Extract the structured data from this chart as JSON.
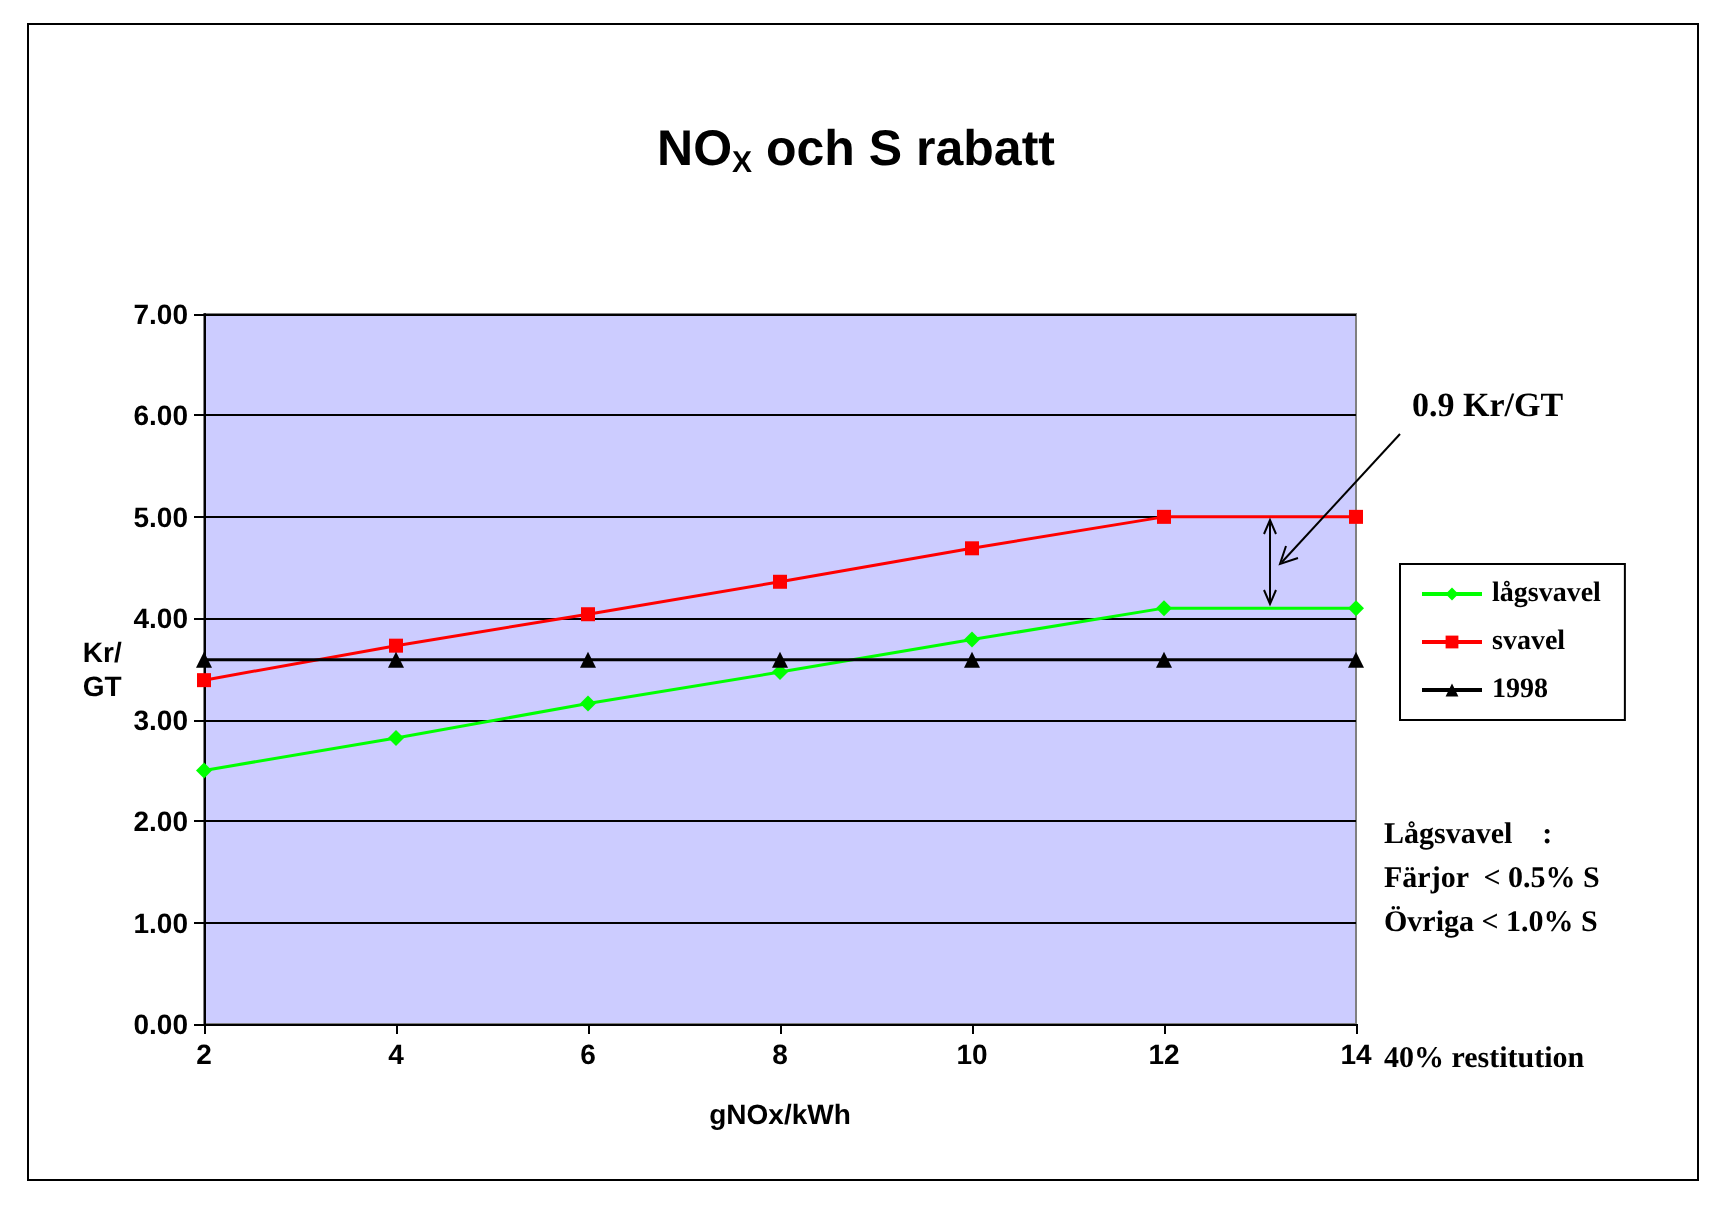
{
  "chart_data": {
    "type": "line",
    "title": "NO$_{X}$ och S rabatt",
    "xlabel": "gNOx/kWh",
    "ylabel": "Kr/GT",
    "x": [
      2,
      4,
      6,
      8,
      10,
      12,
      14
    ],
    "series": [
      {
        "name": "lågsvavel",
        "color": "#00ff00",
        "marker": "diamond",
        "values": [
          2.5,
          2.82,
          3.16,
          3.47,
          3.79,
          4.1,
          4.1
        ]
      },
      {
        "name": "svavel",
        "color": "#ff0000",
        "marker": "square",
        "values": [
          3.39,
          3.73,
          4.04,
          4.36,
          4.69,
          5.0,
          5.0
        ]
      },
      {
        "name": "1998",
        "color": "#000000",
        "marker": "triangle",
        "values": [
          3.59,
          3.59,
          3.59,
          3.59,
          3.59,
          3.59,
          3.59
        ]
      }
    ],
    "xlim": [
      2,
      14
    ],
    "xticks": [
      2,
      4,
      6,
      8,
      10,
      12,
      14
    ],
    "ylim": [
      0,
      7
    ],
    "yticks": [
      {
        "value": 0,
        "label": "0.00"
      },
      {
        "value": 1,
        "label": "1.00"
      },
      {
        "value": 2,
        "label": "2.00"
      },
      {
        "value": 3,
        "label": "3.00"
      },
      {
        "value": 4,
        "label": "4.00"
      },
      {
        "value": 5,
        "label": "5.00"
      },
      {
        "value": 6,
        "label": "6.00"
      },
      {
        "value": 7,
        "label": "7.00"
      }
    ],
    "grid": "y",
    "legend": "right",
    "line_style": "solid",
    "annotations": [
      "0.9 Kr/GT",
      "Lågsvavel    :",
      "Färjor  < 0.5% S",
      "Övriga < 1.0% S",
      "40% restitution"
    ]
  }
}
